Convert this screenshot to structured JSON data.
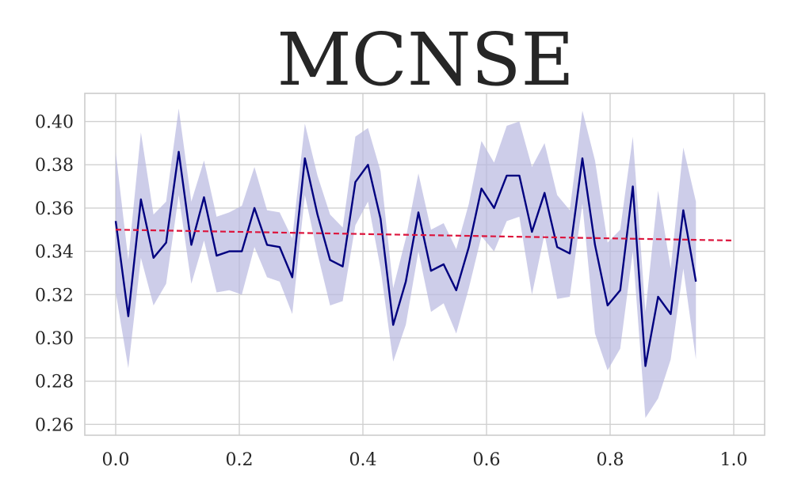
{
  "chart_data": {
    "type": "line",
    "title": "MCNSE",
    "xlabel": "",
    "ylabel": "",
    "xlim": [
      -0.05,
      1.05
    ],
    "ylim": [
      0.255,
      0.413
    ],
    "x_ticks": [
      0.0,
      0.2,
      0.4,
      0.6,
      0.8,
      1.0
    ],
    "x_tick_labels": [
      "0.0",
      "0.2",
      "0.4",
      "0.6",
      "0.8",
      "1.0"
    ],
    "y_ticks": [
      0.26,
      0.28,
      0.3,
      0.32,
      0.34,
      0.36,
      0.38,
      0.4
    ],
    "y_tick_labels": [
      "0.26",
      "0.28",
      "0.30",
      "0.32",
      "0.34",
      "0.36",
      "0.38",
      "0.40"
    ],
    "grid": true,
    "legend": "none",
    "colors": {
      "line": "#00007f",
      "band": "#b8b8e0",
      "trend": "#dc143c",
      "grid": "#d0d0d0",
      "text": "#262626"
    },
    "series": [
      {
        "style": "solid line with shaded band",
        "x": [
          0.0,
          0.0204,
          0.0408,
          0.0612,
          0.0816,
          0.102,
          0.1224,
          0.1429,
          0.1633,
          0.1837,
          0.2041,
          0.2245,
          0.2449,
          0.2653,
          0.2857,
          0.3061,
          0.3265,
          0.3469,
          0.3673,
          0.3878,
          0.4082,
          0.4286,
          0.449,
          0.4694,
          0.4898,
          0.5102,
          0.5306,
          0.551,
          0.5714,
          0.5918,
          0.6122,
          0.6327,
          0.6531,
          0.6735,
          0.6939,
          0.7143,
          0.7347,
          0.7551,
          0.7755,
          0.7959,
          0.8163,
          0.8367,
          0.8571,
          0.8776,
          0.898,
          0.9184,
          0.9388,
          0.9592,
          0.9796,
          1.0
        ],
        "y": [
          0.354,
          0.31,
          0.364,
          0.337,
          0.344,
          0.386,
          0.343,
          0.365,
          0.338,
          0.34,
          0.34,
          0.36,
          0.343,
          0.342,
          0.328,
          0.383,
          0.357,
          0.336,
          0.333,
          0.372,
          0.38,
          0.355,
          0.306,
          0.326,
          0.358,
          0.331,
          0.334,
          0.322,
          0.342,
          0.369,
          0.36,
          0.375,
          0.375,
          0.349,
          0.367,
          0.342,
          0.339,
          0.383,
          0.343,
          0.315,
          0.322,
          0.37,
          0.287,
          0.319,
          0.311,
          0.359,
          0.326,
          null,
          null,
          null
        ],
        "lower": [
          0.321,
          0.286,
          0.337,
          0.315,
          0.325,
          0.366,
          0.325,
          0.345,
          0.321,
          0.322,
          0.32,
          0.342,
          0.328,
          0.326,
          0.311,
          0.366,
          0.339,
          0.315,
          0.317,
          0.352,
          0.363,
          0.332,
          0.289,
          0.306,
          0.34,
          0.312,
          0.316,
          0.302,
          0.323,
          0.347,
          0.34,
          0.354,
          0.356,
          0.32,
          0.348,
          0.318,
          0.319,
          0.362,
          0.302,
          0.285,
          0.295,
          0.34,
          0.263,
          0.272,
          0.29,
          0.332,
          0.29,
          null,
          null,
          null
        ],
        "upper": [
          0.386,
          0.336,
          0.395,
          0.357,
          0.363,
          0.406,
          0.363,
          0.382,
          0.356,
          0.358,
          0.361,
          0.379,
          0.359,
          0.358,
          0.346,
          0.399,
          0.375,
          0.357,
          0.351,
          0.393,
          0.397,
          0.377,
          0.323,
          0.346,
          0.376,
          0.35,
          0.353,
          0.341,
          0.362,
          0.391,
          0.381,
          0.398,
          0.4,
          0.379,
          0.39,
          0.366,
          0.359,
          0.405,
          0.382,
          0.344,
          0.35,
          0.393,
          0.312,
          0.368,
          0.332,
          0.388,
          0.363,
          null,
          null,
          null
        ]
      },
      {
        "style": "dashed trend line",
        "x": [
          0.0,
          1.0
        ],
        "y": [
          0.35,
          0.345
        ]
      }
    ]
  }
}
